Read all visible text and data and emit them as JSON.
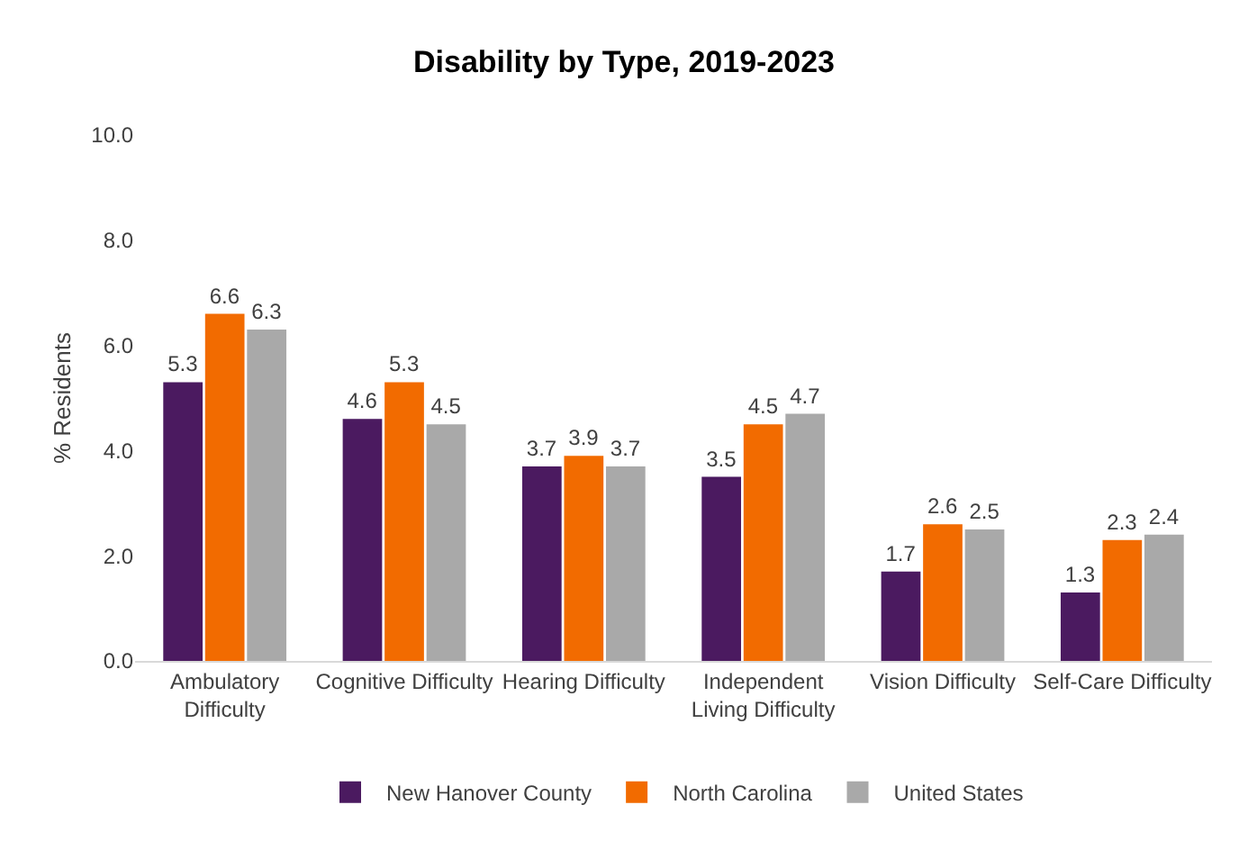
{
  "chart_data": {
    "type": "bar",
    "title": "Disability by Type, 2019-2023",
    "ylabel": "% Residents",
    "categories": [
      "Ambulatory\nDifficulty",
      "Cognitive Difficulty",
      "Hearing Difficulty",
      "Independent\nLiving Difficulty",
      "Vision Difficulty",
      "Self-Care Difficulty"
    ],
    "series": [
      {
        "name": "New Hanover County",
        "color": "#4b1a60",
        "values": [
          5.3,
          4.6,
          3.7,
          3.5,
          1.7,
          1.3
        ]
      },
      {
        "name": "North Carolina",
        "color": "#f26b00",
        "values": [
          6.6,
          5.3,
          3.9,
          4.5,
          2.6,
          2.3
        ]
      },
      {
        "name": "United States",
        "color": "#a9a9a9",
        "values": [
          6.3,
          4.5,
          3.7,
          4.7,
          2.5,
          2.4
        ]
      }
    ],
    "ylim": [
      0,
      10
    ],
    "yticks": [
      {
        "value": 0,
        "label": "0.0"
      },
      {
        "value": 2,
        "label": "2.0"
      },
      {
        "value": 4,
        "label": "4.0"
      },
      {
        "value": 6,
        "label": "6.0"
      },
      {
        "value": 8,
        "label": "8.0"
      },
      {
        "value": 10,
        "label": "10.0"
      }
    ],
    "grid": false,
    "legend": "bottom",
    "data_labels": true
  }
}
